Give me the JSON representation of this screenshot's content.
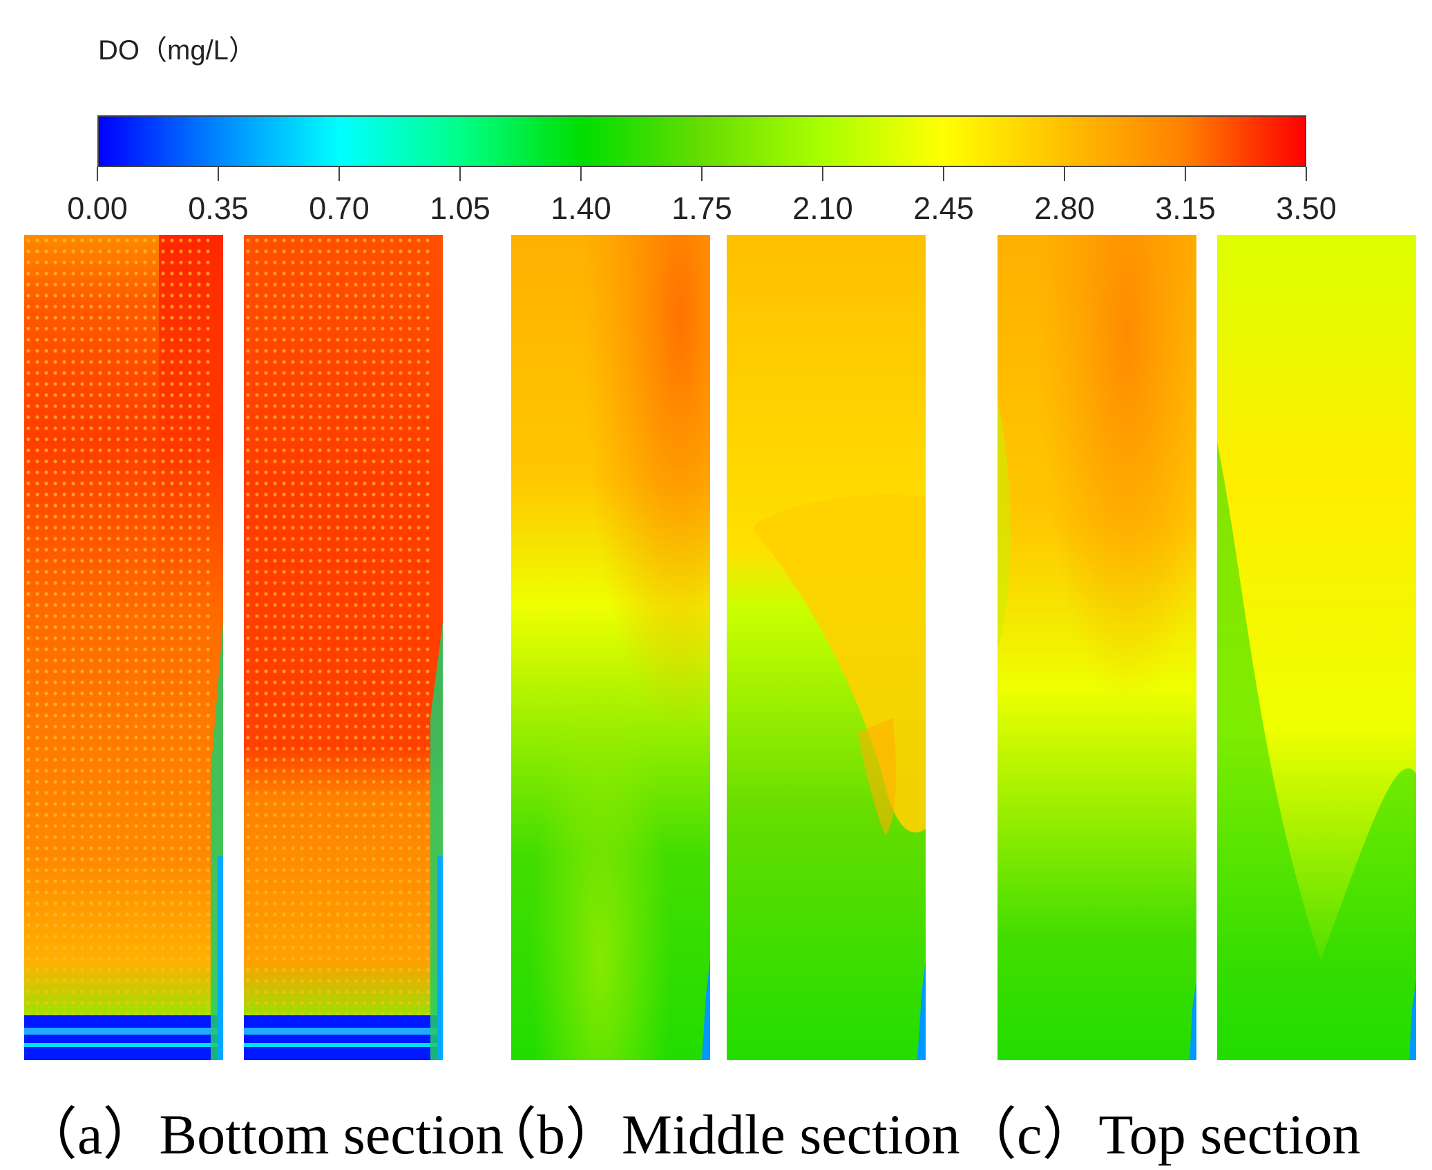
{
  "colorbar": {
    "title": "DO（mg/L）",
    "ticks": [
      "0.00",
      "0.35",
      "0.70",
      "1.05",
      "1.40",
      "1.75",
      "2.10",
      "2.45",
      "2.80",
      "3.15",
      "3.50"
    ],
    "range": [
      0,
      3.5
    ],
    "colors": [
      "#0000ff",
      "#0088ff",
      "#00ffff",
      "#00ff88",
      "#00dd00",
      "#66dd00",
      "#aaff00",
      "#ffff00",
      "#ffc000",
      "#ff8000",
      "#ff0000"
    ]
  },
  "panels": [
    {
      "id": "a-left",
      "section": "bottom"
    },
    {
      "id": "a-right",
      "section": "bottom"
    },
    {
      "id": "b-left",
      "section": "middle"
    },
    {
      "id": "b-right",
      "section": "middle"
    },
    {
      "id": "c-left",
      "section": "top"
    },
    {
      "id": "c-right",
      "section": "top"
    }
  ],
  "captions": {
    "a": "（a）Bottom section",
    "b": "（b）Middle section",
    "c": "（c）Top section"
  }
}
